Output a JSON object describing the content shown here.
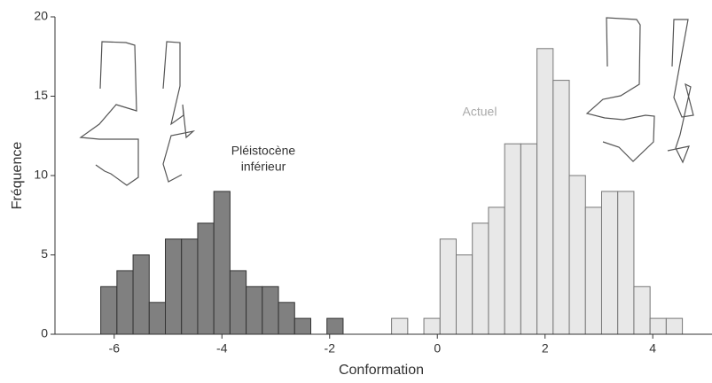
{
  "chart_data": {
    "type": "histogram",
    "x_label": "Conformation",
    "y_label": "Fréquence",
    "xlim": [
      -7.1,
      5.1
    ],
    "xticks": [
      -6,
      -4,
      -2,
      0,
      2,
      4
    ],
    "ylim": [
      0,
      20
    ],
    "yticks": [
      0,
      5,
      10,
      15,
      20
    ],
    "series": [
      {
        "color": "#808080",
        "bins": [
          -6.25,
          -5.95,
          -5.65,
          -5.35,
          -5.05,
          -4.75,
          -4.45,
          -4.15,
          -3.85,
          -3.55,
          -3.25,
          -2.95,
          -2.65,
          -2.35,
          -2.05,
          -1.75
        ],
        "values": [
          3,
          4,
          5,
          2,
          6,
          6,
          7,
          9,
          4,
          3,
          3,
          2,
          1,
          0,
          1
        ]
      },
      {
        "color": "#e8e8e8",
        "bins": [
          -0.85,
          -0.55,
          -0.25,
          0.05,
          0.35,
          0.65,
          0.95,
          1.25,
          1.55,
          1.85,
          2.15,
          2.45,
          2.75,
          3.05,
          3.35,
          3.65,
          3.95,
          4.25,
          4.55
        ],
        "values": [
          1,
          0,
          1,
          6,
          5,
          7,
          8,
          12,
          12,
          18,
          16,
          10,
          8,
          9,
          9,
          3,
          1,
          1
        ]
      }
    ],
    "annotations": [
      {
        "lines": [
          "Pléistocène",
          "inférieur"
        ],
        "color": "#333333"
      },
      {
        "lines": [
          "Actuel"
        ],
        "color": "#aaaaaa"
      }
    ]
  }
}
